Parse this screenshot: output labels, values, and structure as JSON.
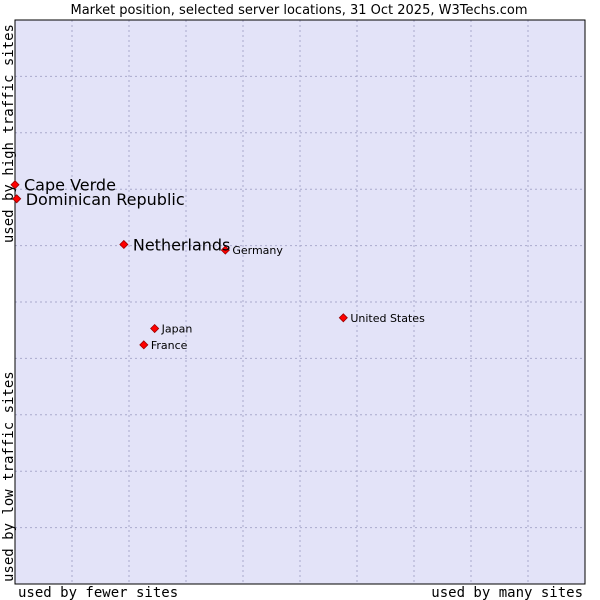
{
  "chart_data": {
    "type": "scatter",
    "title": "Market position, selected server locations, 31 Oct 2025, W3Techs.com",
    "xlabel_left": "used by fewer sites",
    "xlabel_right": "used by many sites",
    "ylabel_top": "used by high traffic sites",
    "ylabel_bottom": "used by low traffic sites",
    "xlim": [
      0,
      100
    ],
    "ylim": [
      0,
      100
    ],
    "grid": true,
    "points": [
      {
        "name": "Cape Verde",
        "x": 0.0,
        "y": 70.8,
        "emphasis": true
      },
      {
        "name": "Dominican Republic",
        "x": 0.3,
        "y": 68.3,
        "emphasis": true
      },
      {
        "name": "Netherlands",
        "x": 19.1,
        "y": 60.2,
        "emphasis": true
      },
      {
        "name": "Germany",
        "x": 36.9,
        "y": 59.2,
        "emphasis": false
      },
      {
        "name": "United States",
        "x": 57.6,
        "y": 47.2,
        "emphasis": false
      },
      {
        "name": "Japan",
        "x": 24.5,
        "y": 45.3,
        "emphasis": false
      },
      {
        "name": "France",
        "x": 22.6,
        "y": 42.4,
        "emphasis": false
      }
    ]
  },
  "colors": {
    "plot_bg": "#e3e3f8",
    "grid": "#aaaacc",
    "point": "#ff0000",
    "point_stroke": "#990000",
    "frame": "#000000"
  }
}
